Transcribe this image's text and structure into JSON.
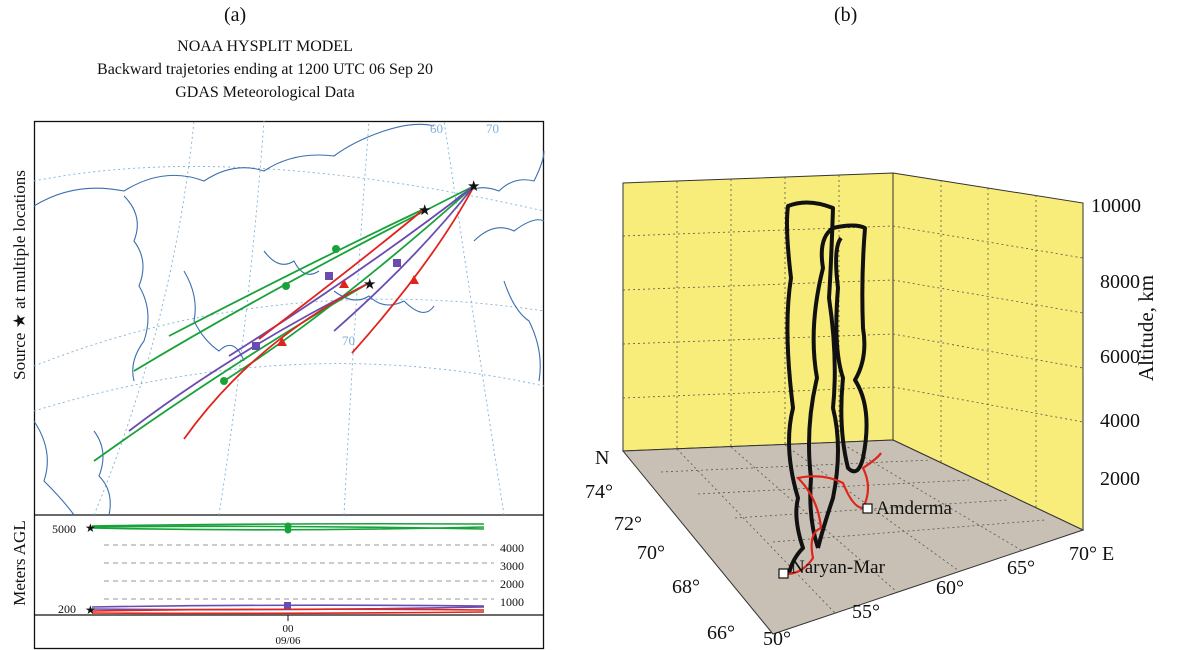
{
  "panel_a": {
    "label": "(a)",
    "title_line1": "NOAA HYSPLIT MODEL",
    "title_line2": "Backward trajetories ending at 1200 UTC 06 Sep 20",
    "title_line3": "GDAS Meteorological Data",
    "y_label_prefix": "Source",
    "y_label_suffix": "at multiple locations",
    "map_graticule_labels": [
      "60",
      "70",
      "70"
    ],
    "height_label": "Meters AGL",
    "height_left_ticks": [
      "5000",
      "200"
    ],
    "height_levels": [
      "4000",
      "3000",
      "2000",
      "1000"
    ],
    "time_tick_hour": "00",
    "time_tick_date": "09/06",
    "colors": {
      "green": "#18a23a",
      "purple": "#6a4cb0",
      "red": "#e0241c",
      "map": "#3a6fb0",
      "graticule": "#7fb0d8"
    }
  },
  "panel_b": {
    "label": "(b)",
    "z_axis_label": "Altitude, km",
    "z_ticks": [
      "10000",
      "8000",
      "6000",
      "4000",
      "2000"
    ],
    "lat_ticks": [
      "74°",
      "72°",
      "70°",
      "68°",
      "66°"
    ],
    "lat_unit": "N",
    "lon_ticks": [
      "50°",
      "55°",
      "60°",
      "65°",
      "70° E"
    ],
    "places": [
      "Amderma",
      "Naryan-Mar"
    ],
    "colors": {
      "wall": "#f8ec7a",
      "floor": "#c8c0b4",
      "trajectory": "#111111",
      "ground_track": "#e0241c"
    }
  }
}
